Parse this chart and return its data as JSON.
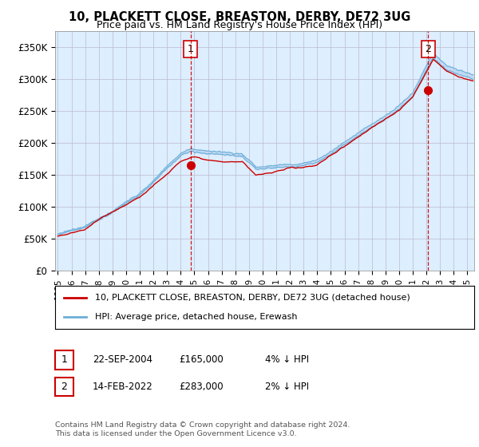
{
  "title": "10, PLACKETT CLOSE, BREASTON, DERBY, DE72 3UG",
  "subtitle": "Price paid vs. HM Land Registry's House Price Index (HPI)",
  "ylabel_ticks": [
    "£0",
    "£50K",
    "£100K",
    "£150K",
    "£200K",
    "£250K",
    "£300K",
    "£350K"
  ],
  "ylim": [
    0,
    375000
  ],
  "xlim_start": 1994.8,
  "xlim_end": 2025.5,
  "hpi_color": "#6baed6",
  "hpi_fill_color": "#c6dbef",
  "price_color": "#cc0000",
  "plot_bg_color": "#ddeeff",
  "marker1_year": 2004.72,
  "marker1_price": 165000,
  "marker2_year": 2022.12,
  "marker2_price": 283000,
  "legend_label1": "10, PLACKETT CLOSE, BREASTON, DERBY, DE72 3UG (detached house)",
  "legend_label2": "HPI: Average price, detached house, Erewash",
  "table_row1_date": "22-SEP-2004",
  "table_row1_price": "£165,000",
  "table_row1_hpi": "4% ↓ HPI",
  "table_row2_date": "14-FEB-2022",
  "table_row2_price": "£283,000",
  "table_row2_hpi": "2% ↓ HPI",
  "footer": "Contains HM Land Registry data © Crown copyright and database right 2024.\nThis data is licensed under the Open Government Licence v3.0.",
  "background_color": "#ffffff",
  "grid_color": "#bbbbcc"
}
